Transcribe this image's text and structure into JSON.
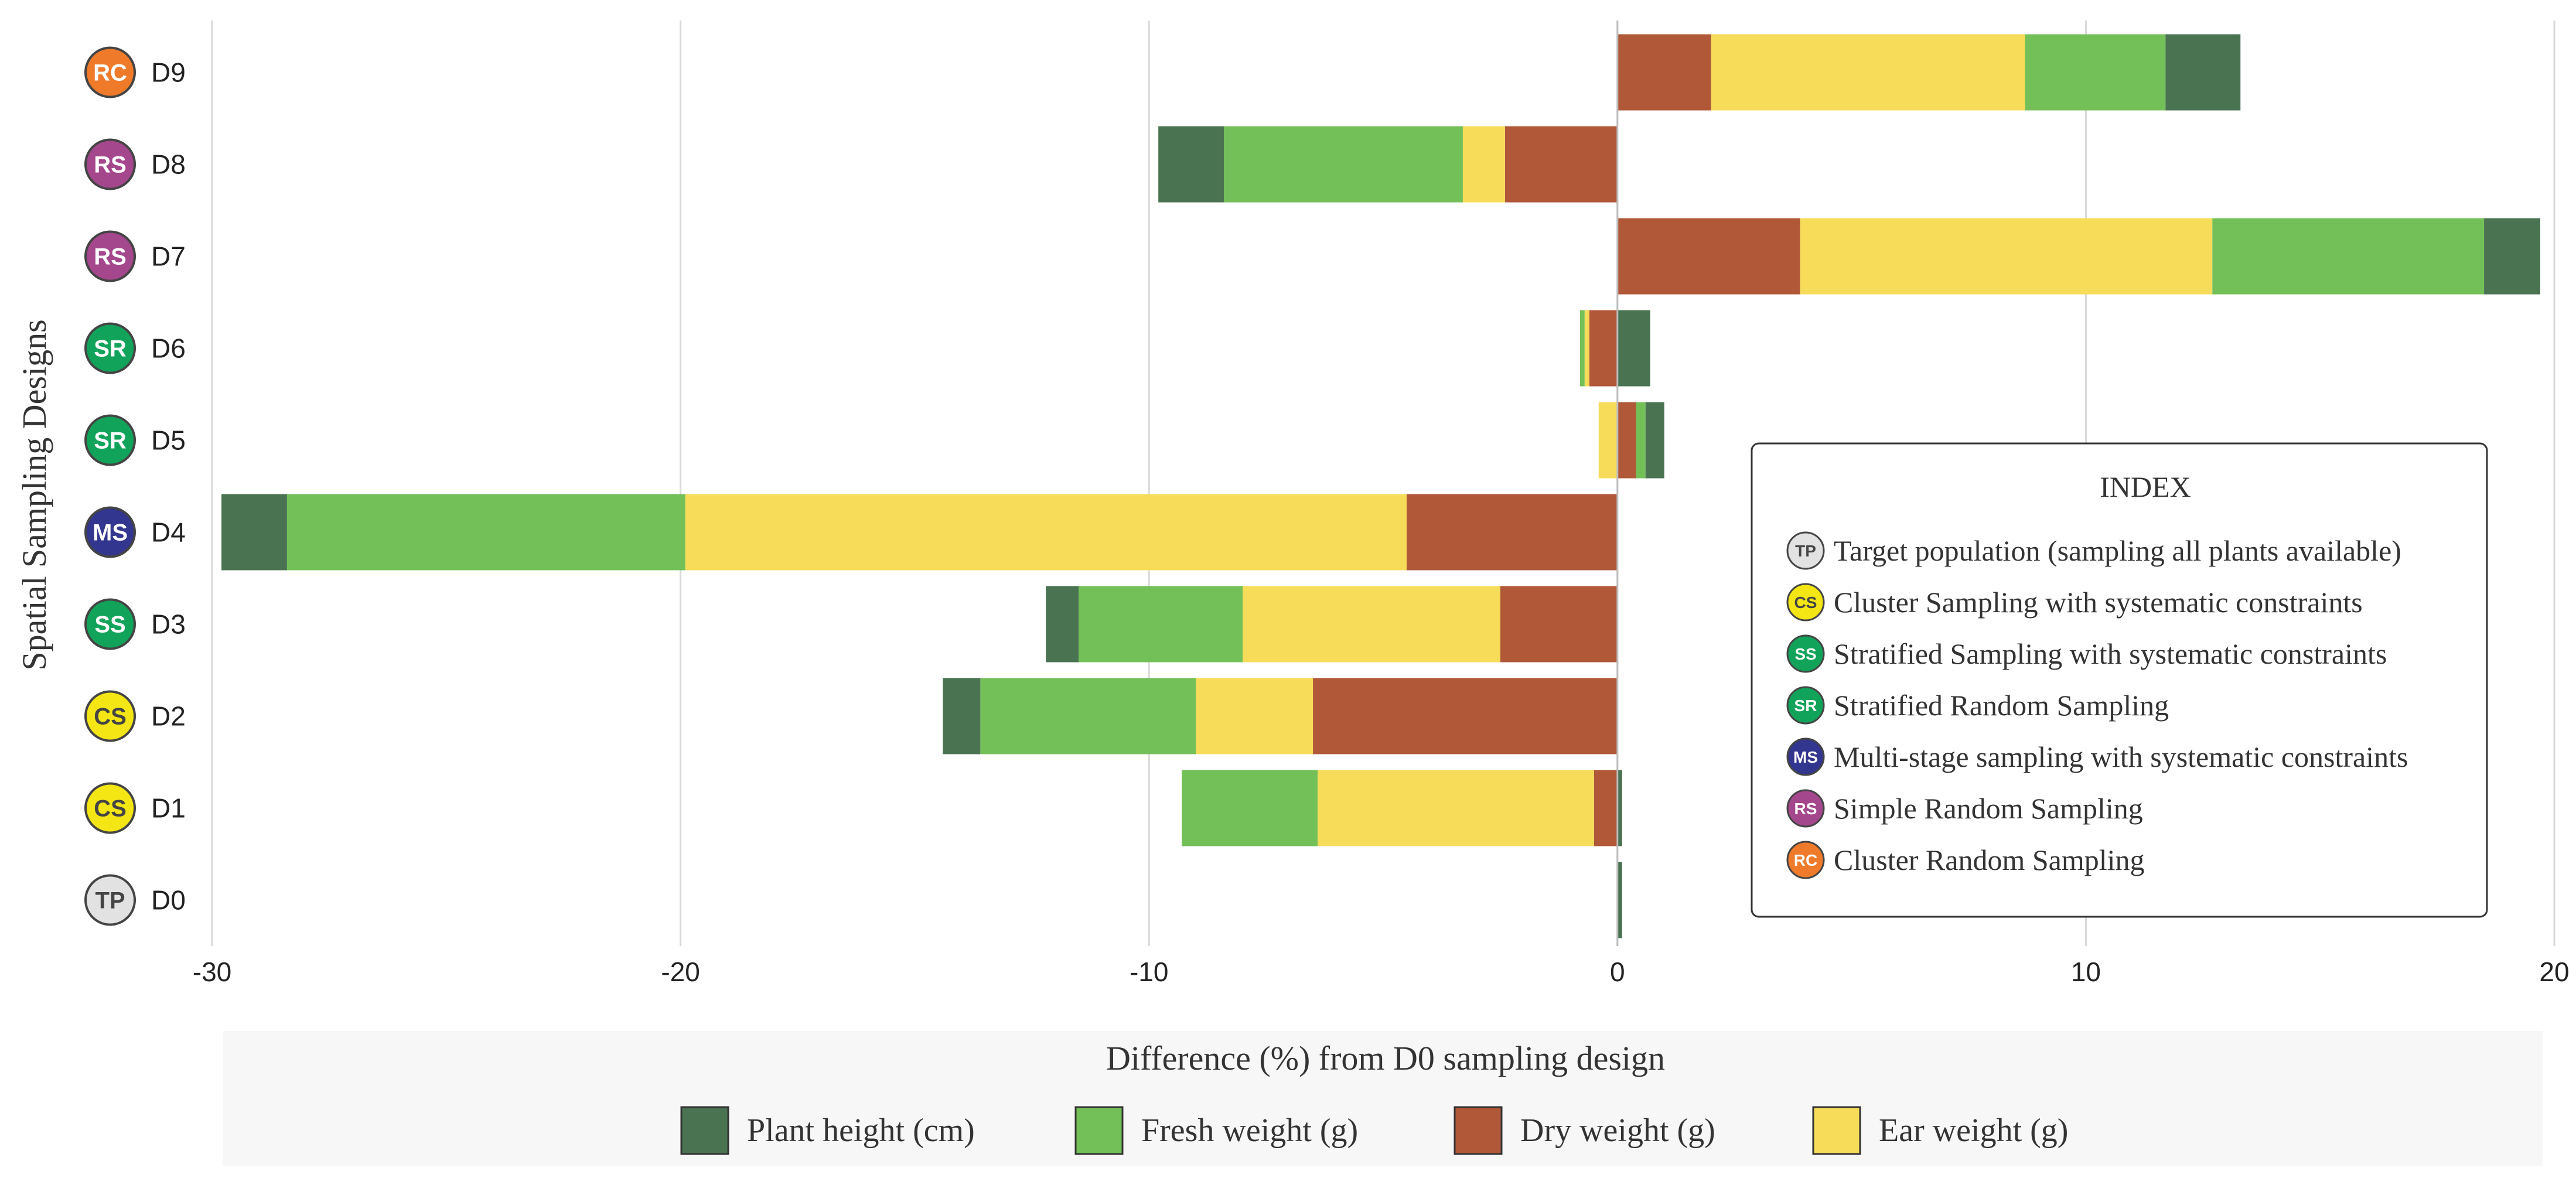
{
  "chart_data": {
    "type": "bar",
    "orientation": "horizontal",
    "stacked": true,
    "xlabel": "Difference (%) from D0 sampling design",
    "ylabel": "Spatial Sampling Designs",
    "xlim": [
      -30,
      20
    ],
    "xticks": [
      -30,
      -20,
      -10,
      0,
      10,
      20
    ],
    "grid": true,
    "legend_position": "bottom",
    "categories": [
      "D0",
      "D1",
      "D2",
      "D3",
      "D4",
      "D5",
      "D6",
      "D7",
      "D8",
      "D9"
    ],
    "category_codes": [
      "TP",
      "CS",
      "CS",
      "SS",
      "MS",
      "SR",
      "SR",
      "RS",
      "RS",
      "RC"
    ],
    "series": [
      {
        "name": "Dry weight (g)",
        "color": "#b05838",
        "values": [
          0,
          -0.5,
          -6.5,
          -2.5,
          -4.5,
          0.4,
          -0.6,
          3.9,
          -2.4,
          2.0
        ]
      },
      {
        "name": "Ear weight (g)",
        "color": "#f7dc5a",
        "values": [
          0,
          -5.9,
          -2.5,
          -5.5,
          -15.4,
          -0.4,
          -0.1,
          8.8,
          -0.9,
          6.7
        ]
      },
      {
        "name": "Fresh weight (g)",
        "color": "#74c058",
        "values": [
          0,
          -2.9,
          -4.6,
          -3.5,
          -8.5,
          0.2,
          -0.1,
          5.8,
          -5.1,
          3.0
        ]
      },
      {
        "name": "Plant height (cm)",
        "color": "#4a7352",
        "values": [
          0.1,
          0.1,
          -0.8,
          -0.7,
          -1.4,
          0.4,
          0.7,
          1.2,
          -1.4,
          1.6
        ]
      }
    ],
    "legend_order": [
      "Plant height (cm)",
      "Fresh weight (g)",
      "Dry weight (g)",
      "Ear weight (g)"
    ],
    "index": {
      "title": "INDEX",
      "entries": [
        {
          "code": "TP",
          "label": "Target population (sampling all plants available)",
          "color": "#e2e2e2",
          "text_color": "#444444"
        },
        {
          "code": "CS",
          "label": "Cluster Sampling with systematic constraints",
          "color": "#f3e614",
          "text_color": "#444444"
        },
        {
          "code": "SS",
          "label": "Stratified Sampling with systematic constraints",
          "color": "#12a35a",
          "text_color": "#ffffff"
        },
        {
          "code": "SR",
          "label": "Stratified Random Sampling",
          "color": "#12a35a",
          "text_color": "#ffffff"
        },
        {
          "code": "MS",
          "label": "Multi-stage sampling with systematic constraints",
          "color": "#33368e",
          "text_color": "#ffffff"
        },
        {
          "code": "RS",
          "label": "Simple Random Sampling",
          "color": "#a4478c",
          "text_color": "#ffffff"
        },
        {
          "code": "RC",
          "label": "Cluster Random Sampling",
          "color": "#ee7a2a",
          "text_color": "#ffffff"
        }
      ]
    }
  }
}
